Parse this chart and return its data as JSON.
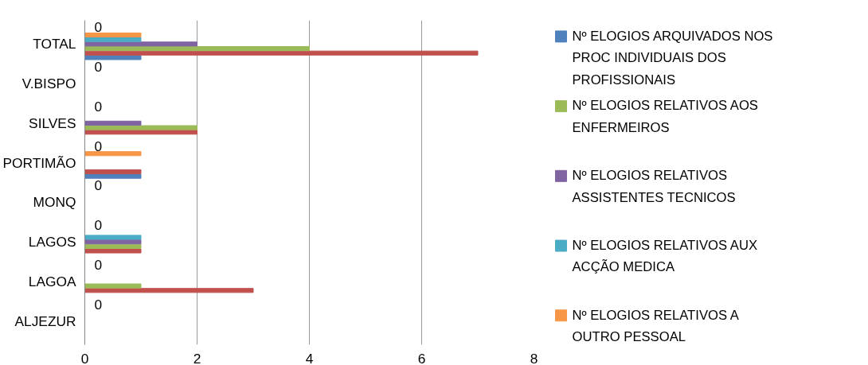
{
  "chart_data": {
    "type": "bar",
    "orientation": "horizontal",
    "categories": [
      "TOTAL",
      "V.BISPO",
      "SILVES",
      "PORTIMÃO",
      "MONQ",
      "LAGOS",
      "LAGOA",
      "ALJEZUR"
    ],
    "series": [
      {
        "name": "Nº ELOGIOS ARQUIVADOS NOS PROC INDIVIDUAIS DOS PROFISSIONAIS",
        "color": "#4f81bd",
        "values": [
          1,
          0,
          0,
          1,
          0,
          0,
          0,
          0
        ]
      },
      {
        "color": "#c0504d",
        "values": [
          7,
          0,
          2,
          1,
          0,
          1,
          3,
          0
        ]
      },
      {
        "name": "Nº ELOGIOS RELATIVOS AOS ENFERMEIROS",
        "color": "#9bbb59",
        "values": [
          4,
          0,
          2,
          0,
          0,
          1,
          1,
          0
        ]
      },
      {
        "name": "Nº ELOGIOS RELATIVOS ASSISTENTES TECNICOS",
        "color": "#8064a2",
        "values": [
          2,
          0,
          1,
          0,
          0,
          1,
          0,
          0
        ]
      },
      {
        "name": "Nº ELOGIOS RELATIVOS AUX ACÇÃO MEDICA",
        "color": "#4bacc6",
        "values": [
          1,
          0,
          0,
          0,
          0,
          1,
          0,
          0
        ]
      },
      {
        "name": "Nº ELOGIOS RELATIVOS A OUTRO PESSOAL",
        "color": "#f79646",
        "values": [
          1,
          0,
          0,
          1,
          0,
          0,
          0,
          0
        ]
      },
      {
        "color": "#2c4d75",
        "values": [
          0,
          0,
          0,
          0,
          0,
          0,
          0,
          0
        ],
        "value_labels": [
          "0",
          "0",
          "0",
          "0",
          "0",
          "0",
          "0",
          "0"
        ]
      }
    ],
    "xlim": [
      0,
      8
    ],
    "xticks": [
      0,
      2,
      4,
      6,
      8
    ],
    "grid": "x",
    "legend": "right"
  }
}
